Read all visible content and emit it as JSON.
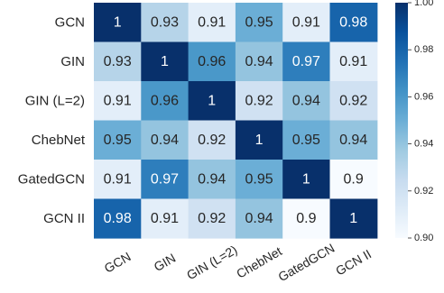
{
  "chart_data": {
    "type": "heatmap",
    "title": "",
    "xlabel": "",
    "ylabel": "",
    "row_labels": [
      "GCN",
      "GIN",
      "GIN (L=2)",
      "ChebNet",
      "GatedGCN",
      "GCN II"
    ],
    "col_labels": [
      "GCN",
      "GIN",
      "GIN (L=2)",
      "ChebNet",
      "GatedGCN",
      "GCN II"
    ],
    "values": [
      [
        1,
        0.93,
        0.91,
        0.95,
        0.91,
        0.98
      ],
      [
        0.93,
        1,
        0.96,
        0.94,
        0.97,
        0.91
      ],
      [
        0.91,
        0.96,
        1,
        0.92,
        0.94,
        0.92
      ],
      [
        0.95,
        0.94,
        0.92,
        1,
        0.95,
        0.94
      ],
      [
        0.91,
        0.97,
        0.94,
        0.95,
        1,
        0.9
      ],
      [
        0.98,
        0.91,
        0.92,
        0.94,
        0.9,
        1
      ]
    ],
    "cell_labels": [
      [
        "1",
        "0.93",
        "0.91",
        "0.95",
        "0.91",
        "0.98"
      ],
      [
        "0.93",
        "1",
        "0.96",
        "0.94",
        "0.97",
        "0.91"
      ],
      [
        "0.91",
        "0.96",
        "1",
        "0.92",
        "0.94",
        "0.92"
      ],
      [
        "0.95",
        "0.94",
        "0.92",
        "1",
        "0.95",
        "0.94"
      ],
      [
        "0.91",
        "0.97",
        "0.94",
        "0.95",
        "1",
        "0.9"
      ],
      [
        "0.98",
        "0.91",
        "0.92",
        "0.94",
        "0.9",
        "1"
      ]
    ],
    "colorbar": {
      "range": [
        0.9,
        1.0
      ],
      "ticks": [
        0.9,
        0.92,
        0.94,
        0.96,
        0.98,
        1.0
      ],
      "tick_labels": [
        "0.90",
        "0.92",
        "0.94",
        "0.96",
        "0.98",
        "1.00"
      ]
    },
    "colormap": "Blues",
    "colormap_stops": [
      "#f7fbff",
      "#deebf7",
      "#c6dbef",
      "#9ecae1",
      "#6baed6",
      "#4292c6",
      "#2171b5",
      "#08519c",
      "#08306b"
    ]
  }
}
